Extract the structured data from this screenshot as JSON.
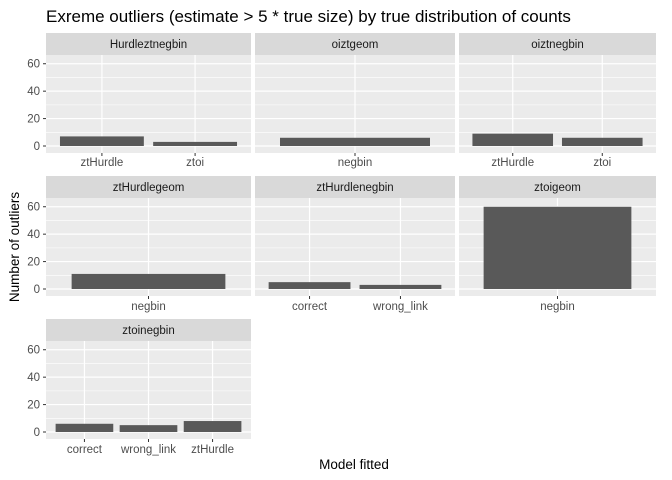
{
  "chart_data": {
    "type": "bar",
    "title": "Exreme outliers (estimate > 5 * true size) by true distribution of counts",
    "xlabel": "Model fitted",
    "ylabel": "Number of outliers",
    "ylim": [
      0,
      70
    ],
    "yticks": [
      0,
      20,
      40,
      60
    ],
    "grid": true,
    "facets": [
      {
        "name": "Hurdleztnegbin",
        "categories": [
          "ztHurdle",
          "ztoi"
        ],
        "values": [
          7,
          3
        ]
      },
      {
        "name": "oiztgeom",
        "categories": [
          "negbin"
        ],
        "values": [
          6
        ]
      },
      {
        "name": "oiztnegbin",
        "categories": [
          "ztHurdle",
          "ztoi"
        ],
        "values": [
          9,
          6
        ]
      },
      {
        "name": "ztHurdlegeom",
        "categories": [
          "negbin"
        ],
        "values": [
          11
        ]
      },
      {
        "name": "ztHurdlenegbin",
        "categories": [
          "correct",
          "wrong_link"
        ],
        "values": [
          5,
          3
        ]
      },
      {
        "name": "ztoigeom",
        "categories": [
          "negbin"
        ],
        "values": [
          60
        ]
      },
      {
        "name": "ztoinegbin",
        "categories": [
          "correct",
          "wrong_link",
          "ztHurdle"
        ],
        "values": [
          6,
          5,
          8
        ]
      }
    ],
    "colors": {
      "bar": "#595959",
      "panel": "#ebebeb",
      "strip": "#d9d9d9",
      "grid": "#ffffff"
    }
  }
}
